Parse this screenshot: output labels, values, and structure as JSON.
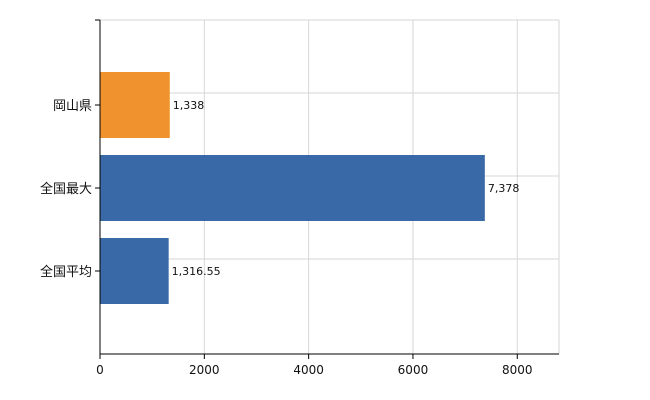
{
  "chart_data": {
    "type": "bar",
    "orientation": "horizontal",
    "categories": [
      "岡山県",
      "全国最大",
      "全国平均"
    ],
    "values": [
      1338,
      7378,
      1316.55
    ],
    "value_labels": [
      "1,338",
      "7,378",
      "1,316.55"
    ],
    "bar_colors": [
      "#f0932e",
      "#3a69a8",
      "#3a69a8"
    ],
    "xlim": [
      0,
      8800
    ],
    "xticks": [
      0,
      2000,
      4000,
      6000,
      8000
    ],
    "grid": true,
    "title": "",
    "xlabel": "",
    "ylabel": ""
  }
}
